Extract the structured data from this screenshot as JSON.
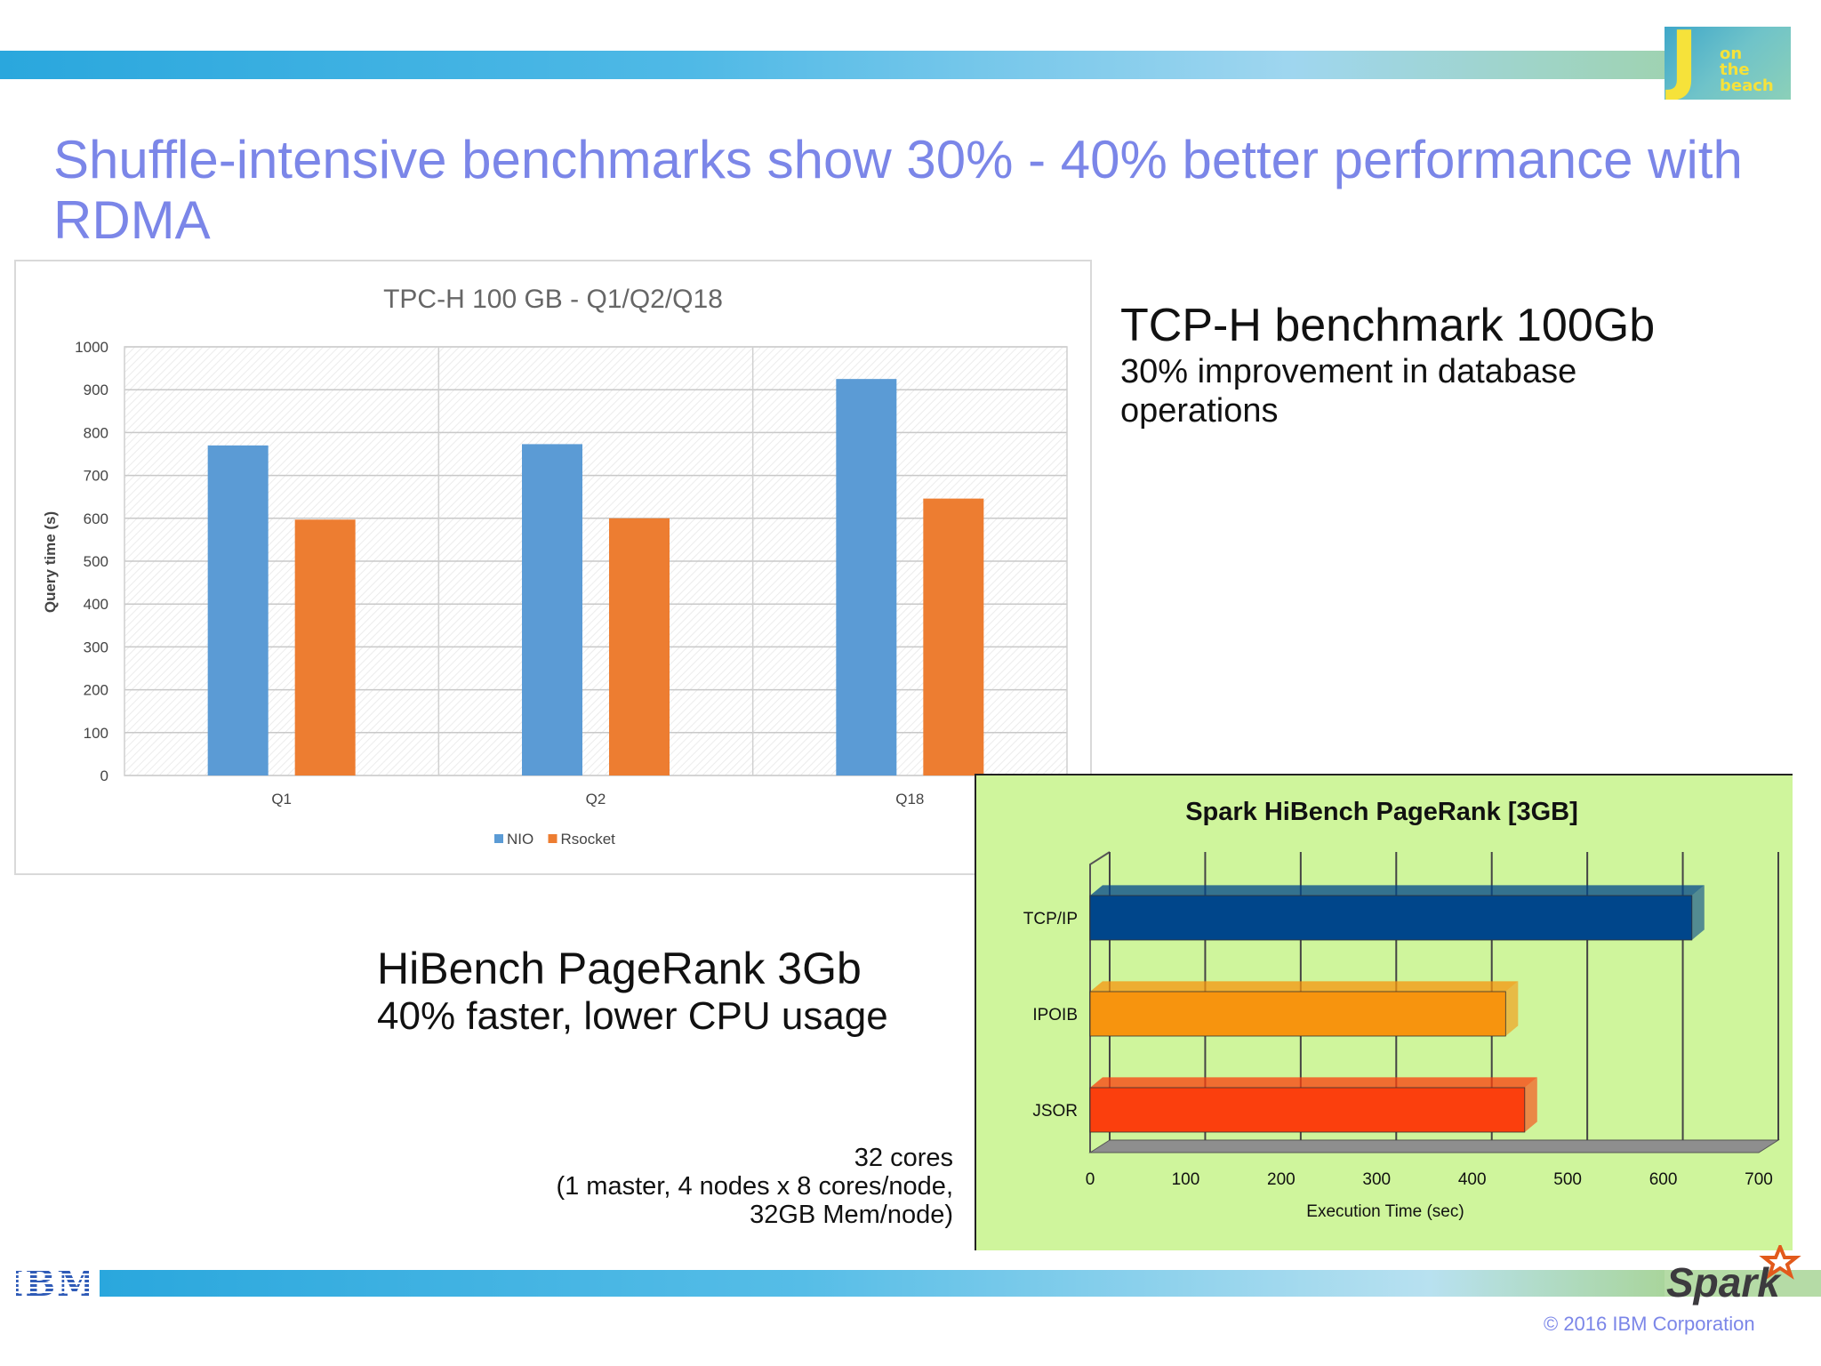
{
  "slide": {
    "title": "Shuffle-intensive benchmarks show 30% - 40% better performance with RDMA",
    "logo": {
      "icon": "on-the-beach-logo",
      "letter": "J",
      "words": [
        "on",
        "the",
        "beach"
      ]
    },
    "copyright": "© 2016 IBM Corporation",
    "ibm_logo_text": "IBM",
    "spark_logo_text": "Spark"
  },
  "tcp_note": {
    "heading": "TCP-H benchmark 100Gb",
    "subtitle": "30% improvement in database operations"
  },
  "hibench_note": {
    "heading": "HiBench PageRank 3Gb",
    "subtitle": "40% faster, lower CPU usage"
  },
  "cores_note": {
    "line1": "32 cores",
    "line2": "(1 master, 4 nodes x 8 cores/node,",
    "line3": "32GB Mem/node)"
  },
  "chart_data": [
    {
      "type": "bar",
      "title": "TPC-H 100 GB - Q1/Q2/Q18",
      "xlabel": "",
      "ylabel": "Query time (s)",
      "categories": [
        "Q1",
        "Q2",
        "Q18"
      ],
      "series": [
        {
          "name": "NIO",
          "values": [
            770,
            773,
            925
          ],
          "color": "#5b9bd5"
        },
        {
          "name": "Rsocket",
          "values": [
            597,
            600,
            646
          ],
          "color": "#ed7d31"
        }
      ],
      "ylim": [
        0,
        1000
      ],
      "yticks": [
        "0",
        "100",
        "200",
        "300",
        "400",
        "500",
        "600",
        "700",
        "800",
        "900",
        "1000"
      ],
      "grid": true,
      "legend": "bottom-center"
    },
    {
      "type": "bar",
      "orientation": "horizontal",
      "title": "Spark HiBench PageRank [3GB]",
      "xlabel": "Execution Time (sec)",
      "ylabel": "",
      "categories": [
        "TCP/IP",
        "IPOIB",
        "JSOR"
      ],
      "values": [
        630,
        435,
        455
      ],
      "colors": [
        "#00468b",
        "#f7940e",
        "#fb3f0d"
      ],
      "xlim": [
        0,
        700
      ],
      "xticks": [
        "0",
        "100",
        "200",
        "300",
        "400",
        "500",
        "600",
        "700"
      ],
      "grid": true,
      "background": "#cff59c"
    }
  ]
}
